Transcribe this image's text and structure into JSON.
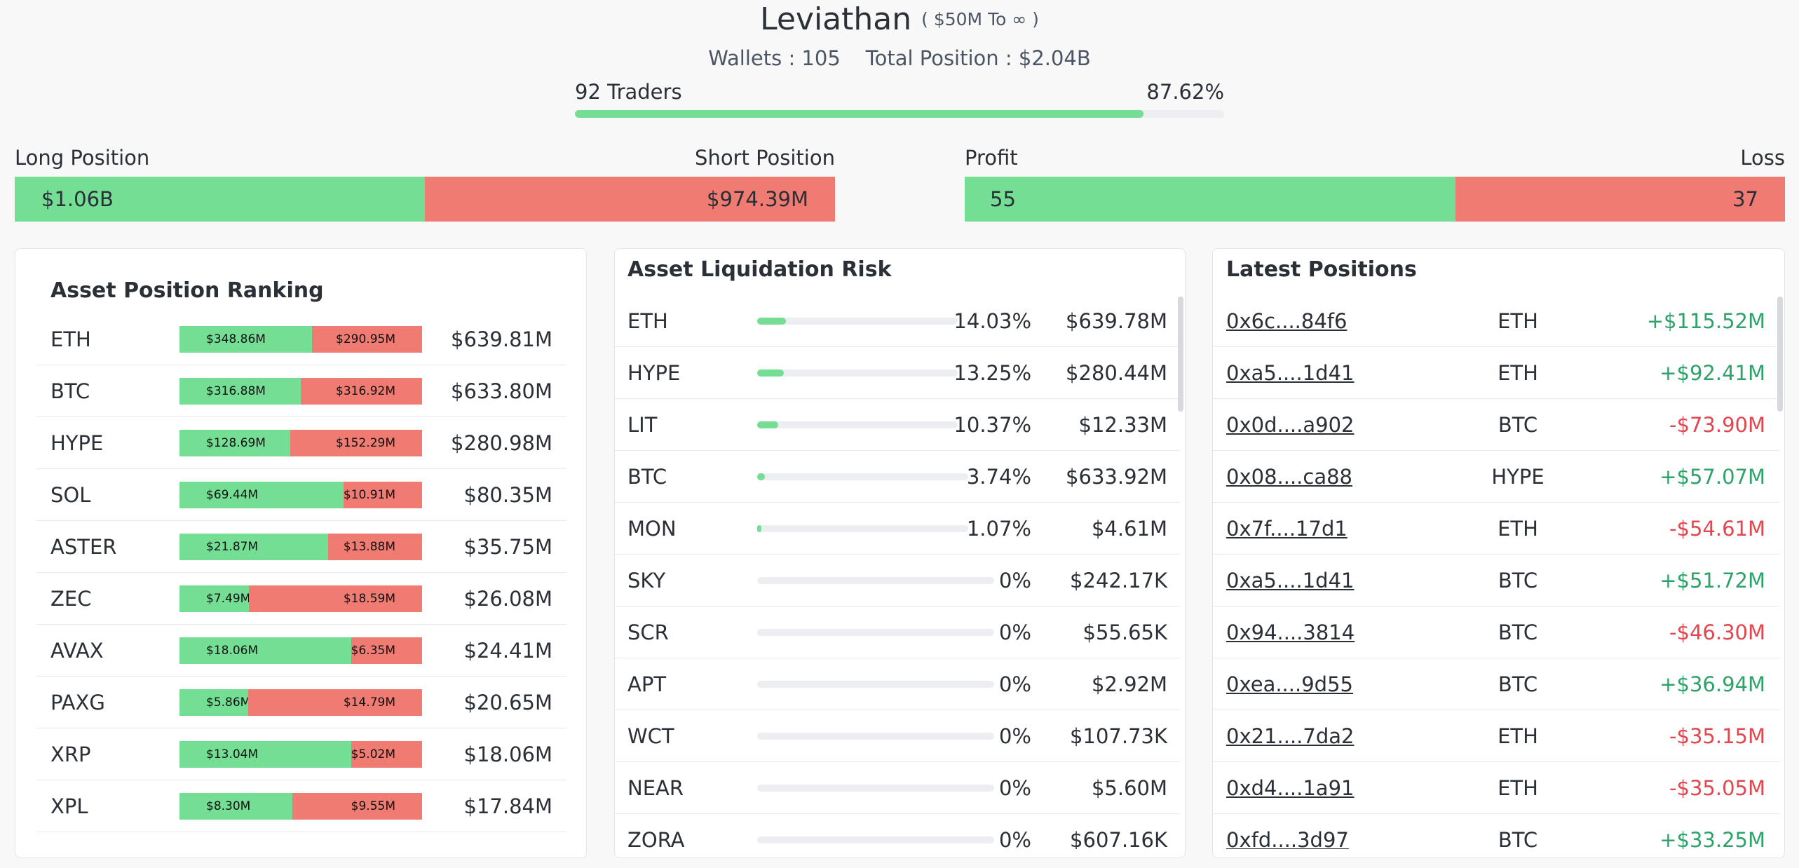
{
  "header": {
    "name": "Leviathan",
    "range": "( $50M To ∞ )",
    "wallets": "Wallets : 105",
    "total_position": "Total Position : $2.04B",
    "traders": "92 Traders",
    "traders_pct_label": "87.62%",
    "traders_fraction": 0.8762
  },
  "long_short": {
    "long_label": "Long Position",
    "short_label": "Short Position",
    "long_value": "$1.06B",
    "short_value": "$974.39M",
    "long_fraction": 0.5
  },
  "profit_loss": {
    "profit_label": "Profit",
    "loss_label": "Loss",
    "profit_value": "55",
    "loss_value": "37",
    "profit_fraction": 0.598
  },
  "ranking": {
    "title": "Asset Position Ranking",
    "rows": [
      {
        "asset": "ETH",
        "long": "$348.86M",
        "short": "$290.95M",
        "total": "$639.81M",
        "long_fraction": 0.545
      },
      {
        "asset": "BTC",
        "long": "$316.88M",
        "short": "$316.92M",
        "total": "$633.80M",
        "long_fraction": 0.5
      },
      {
        "asset": "HYPE",
        "long": "$128.69M",
        "short": "$152.29M",
        "total": "$280.98M",
        "long_fraction": 0.458
      },
      {
        "asset": "SOL",
        "long": "$69.44M",
        "short": "$10.91M",
        "total": "$80.35M",
        "long_fraction": 0.864
      },
      {
        "asset": "ASTER",
        "long": "$21.87M",
        "short": "$13.88M",
        "total": "$35.75M",
        "long_fraction": 0.612
      },
      {
        "asset": "ZEC",
        "long": "$7.49M",
        "short": "$18.59M",
        "total": "$26.08M",
        "long_fraction": 0.287
      },
      {
        "asset": "AVAX",
        "long": "$18.06M",
        "short": "$6.35M",
        "total": "$24.41M",
        "long_fraction": 0.74
      },
      {
        "asset": "PAXG",
        "long": "$5.86M",
        "short": "$14.79M",
        "total": "$20.65M",
        "long_fraction": 0.284
      },
      {
        "asset": "XRP",
        "long": "$13.04M",
        "short": "$5.02M",
        "total": "$18.06M",
        "long_fraction": 0.722
      },
      {
        "asset": "XPL",
        "long": "$8.30M",
        "short": "$9.55M",
        "total": "$17.84M",
        "long_fraction": 0.465
      }
    ]
  },
  "liquidation": {
    "title": "Asset Liquidation Risk",
    "rows": [
      {
        "asset": "ETH",
        "pct": "14.03%",
        "value": "$639.78M",
        "fraction": 0.1403
      },
      {
        "asset": "HYPE",
        "pct": "13.25%",
        "value": "$280.44M",
        "fraction": 0.1325
      },
      {
        "asset": "LIT",
        "pct": "10.37%",
        "value": "$12.33M",
        "fraction": 0.1037
      },
      {
        "asset": "BTC",
        "pct": "3.74%",
        "value": "$633.92M",
        "fraction": 0.0374
      },
      {
        "asset": "MON",
        "pct": "1.07%",
        "value": "$4.61M",
        "fraction": 0.0107
      },
      {
        "asset": "SKY",
        "pct": "0%",
        "value": "$242.17K",
        "fraction": 0
      },
      {
        "asset": "SCR",
        "pct": "0%",
        "value": "$55.65K",
        "fraction": 0
      },
      {
        "asset": "APT",
        "pct": "0%",
        "value": "$2.92M",
        "fraction": 0
      },
      {
        "asset": "WCT",
        "pct": "0%",
        "value": "$107.73K",
        "fraction": 0
      },
      {
        "asset": "NEAR",
        "pct": "0%",
        "value": "$5.60M",
        "fraction": 0
      },
      {
        "asset": "ZORA",
        "pct": "0%",
        "value": "$607.16K",
        "fraction": 0
      }
    ]
  },
  "latest": {
    "title": "Latest Positions",
    "rows": [
      {
        "address": "0x6c....84f6",
        "asset": "ETH",
        "pnl": "+$115.52M",
        "sign": "pos"
      },
      {
        "address": "0xa5....1d41",
        "asset": "ETH",
        "pnl": "+$92.41M",
        "sign": "pos"
      },
      {
        "address": "0x0d....a902",
        "asset": "BTC",
        "pnl": "-$73.90M",
        "sign": "neg"
      },
      {
        "address": "0x08....ca88",
        "asset": "HYPE",
        "pnl": "+$57.07M",
        "sign": "pos"
      },
      {
        "address": "0x7f....17d1",
        "asset": "ETH",
        "pnl": "-$54.61M",
        "sign": "neg"
      },
      {
        "address": "0xa5....1d41",
        "asset": "BTC",
        "pnl": "+$51.72M",
        "sign": "pos"
      },
      {
        "address": "0x94....3814",
        "asset": "BTC",
        "pnl": "-$46.30M",
        "sign": "neg"
      },
      {
        "address": "0xea....9d55",
        "asset": "BTC",
        "pnl": "+$36.94M",
        "sign": "pos"
      },
      {
        "address": "0x21....7da2",
        "asset": "ETH",
        "pnl": "-$35.15M",
        "sign": "neg"
      },
      {
        "address": "0xd4....1a91",
        "asset": "ETH",
        "pnl": "-$35.05M",
        "sign": "neg"
      },
      {
        "address": "0xfd....3d97",
        "asset": "BTC",
        "pnl": "+$33.25M",
        "sign": "pos"
      }
    ]
  },
  "colors": {
    "long": "#74de95",
    "short": "#ef7b72",
    "profit_text": "#2fa26a",
    "loss_text": "#e2464f"
  }
}
